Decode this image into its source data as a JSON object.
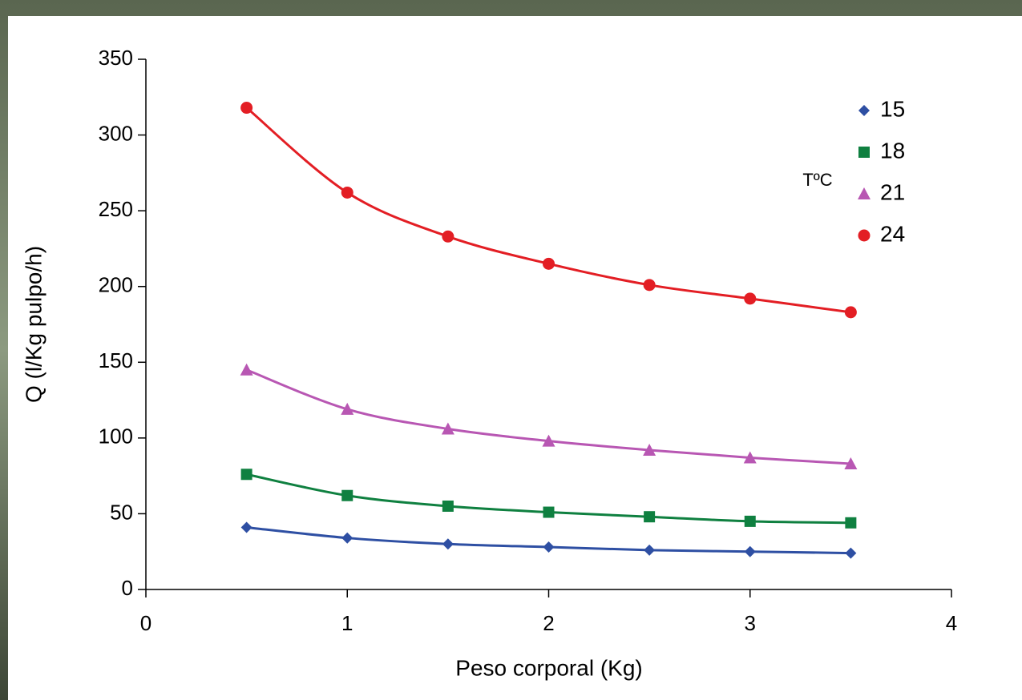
{
  "chart_data": {
    "type": "line",
    "x_label": "Peso corporal (Kg)",
    "y_label": "Q (l/Kg pulpo/h)",
    "legend_title": "TºC",
    "legend_position": "upper-right",
    "x": [
      0.5,
      1,
      1.5,
      2,
      2.5,
      3,
      3.5
    ],
    "series": [
      {
        "name": "15",
        "color": "#2e4fa3",
        "marker": "diamond",
        "values": [
          41,
          34,
          30,
          28,
          26,
          25,
          24
        ]
      },
      {
        "name": "18",
        "color": "#0f8040",
        "marker": "square",
        "values": [
          76,
          62,
          55,
          51,
          48,
          45,
          44
        ]
      },
      {
        "name": "21",
        "color": "#b857b3",
        "marker": "triangle",
        "values": [
          145,
          119,
          106,
          98,
          92,
          87,
          83
        ]
      },
      {
        "name": "24",
        "color": "#e31e24",
        "marker": "circle",
        "values": [
          318,
          262,
          233,
          215,
          201,
          192,
          183
        ]
      }
    ],
    "xlim": [
      0,
      4
    ],
    "xticks": [
      0,
      1,
      2,
      3,
      4
    ],
    "ylim": [
      0,
      350
    ],
    "yticks": [
      0,
      50,
      100,
      150,
      200,
      250,
      300,
      350
    ],
    "grid": false
  }
}
